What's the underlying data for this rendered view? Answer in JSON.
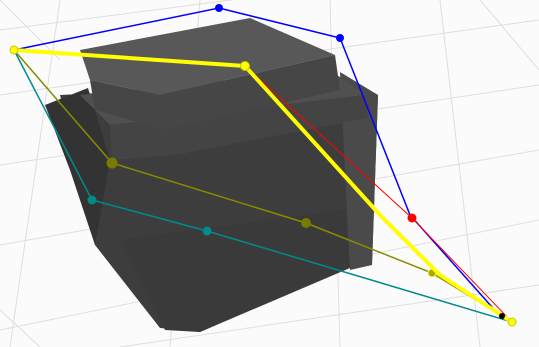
{
  "viewport": {
    "background": "#fbfbfb",
    "grid_color": "#dedede"
  },
  "colors": {
    "cube_dark": "#3a3a3a",
    "cube_mid": "#484848",
    "cube_light": "#565656",
    "path_yellow": "#ffff00",
    "path_olive": "#8a8a00",
    "path_teal": "#008b8b",
    "path_red": "#ff0000",
    "path_blue": "#0000ff",
    "pivot": "#000000"
  },
  "paths": [
    {
      "id": "blue-hull-path",
      "color_key": "path_blue",
      "handles": 2
    },
    {
      "id": "red-path",
      "color_key": "path_red",
      "handles": 1
    },
    {
      "id": "olive-path",
      "color_key": "path_olive",
      "handles": 3
    },
    {
      "id": "teal-path",
      "color_key": "path_teal",
      "handles": 2
    },
    {
      "id": "yellow-path",
      "color_key": "path_yellow",
      "handles": 3
    }
  ]
}
